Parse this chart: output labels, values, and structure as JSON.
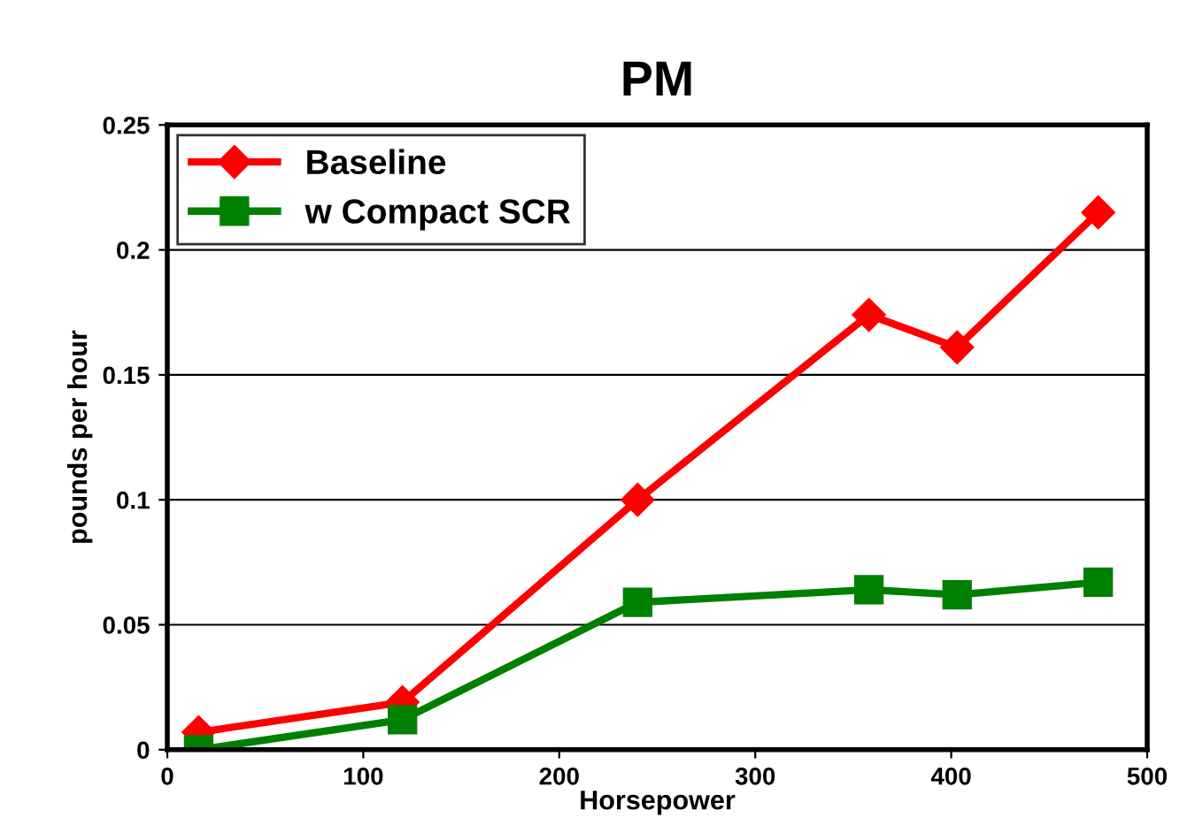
{
  "chart_data": {
    "type": "line",
    "title": "PM",
    "xlabel": "Horsepower",
    "ylabel": "pounds per hour",
    "x": [
      16,
      120,
      240,
      358,
      403,
      475
    ],
    "series": [
      {
        "name": "Baseline",
        "color": "#ff0000",
        "marker": "diamond",
        "values": [
          0.007,
          0.019,
          0.1,
          0.174,
          0.161,
          0.215
        ]
      },
      {
        "name": "w Compact SCR",
        "color": "#008000",
        "marker": "square",
        "values": [
          0,
          0.012,
          0.059,
          0.064,
          0.062,
          0.067
        ]
      }
    ],
    "xlim": [
      0,
      500
    ],
    "xticks": [
      0,
      100,
      200,
      300,
      400,
      500
    ],
    "ylim": [
      0,
      0.25
    ],
    "yticks": [
      0,
      0.05,
      0.1,
      0.15,
      0.2,
      0.25
    ],
    "grid": "y",
    "legend": "top left",
    "line_style": "solid"
  }
}
